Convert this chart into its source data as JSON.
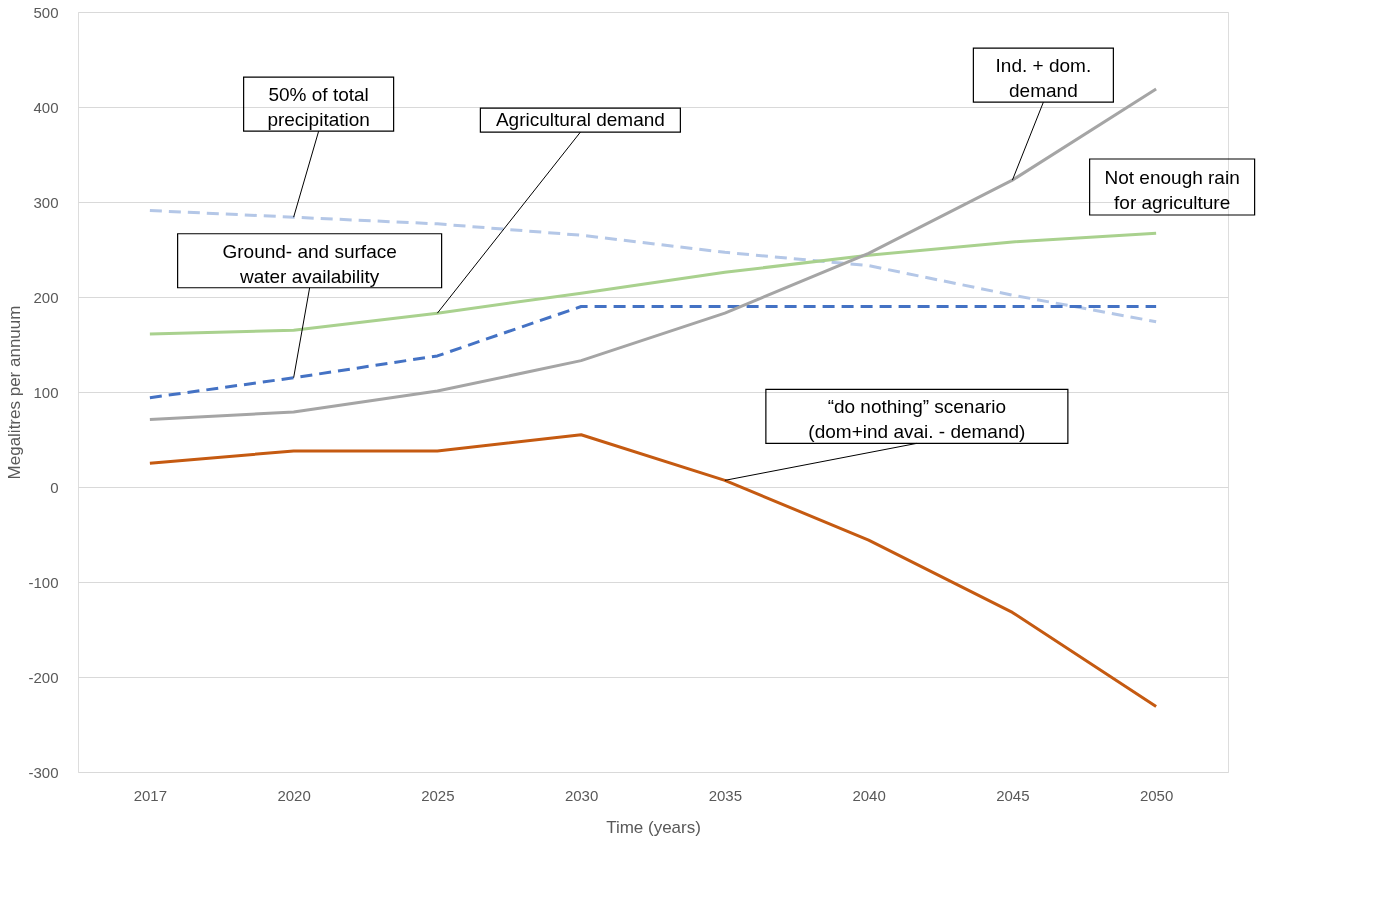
{
  "chart_data": {
    "type": "line",
    "xlabel": "Time (years)",
    "ylabel": "Megalitres per annuum",
    "categories": [
      "2017",
      "2020",
      "2025",
      "2030",
      "2035",
      "2040",
      "2045",
      "2050"
    ],
    "ylim": [
      -300,
      500
    ],
    "yticks": [
      -300,
      -200,
      -100,
      0,
      100,
      200,
      300,
      400,
      500
    ],
    "grid": "y",
    "marker": "none",
    "series": [
      {
        "color": "#b4c7e7",
        "line_style": "dashed",
        "values": [
          291,
          284,
          277,
          265,
          247,
          233,
          202,
          174
        ]
      },
      {
        "color": "#4472c4",
        "line_style": "dashed",
        "values": [
          94,
          115,
          138,
          190,
          190,
          190,
          190,
          190
        ]
      },
      {
        "color": "#a9d18e",
        "line_style": "solid",
        "values": [
          161,
          165,
          183,
          204,
          226,
          244,
          258,
          267
        ]
      },
      {
        "color": "#a5a5a5",
        "line_style": "solid",
        "values": [
          71,
          79,
          101,
          133,
          183,
          246,
          323,
          419
        ]
      },
      {
        "color": "#c55a11",
        "line_style": "solid",
        "values": [
          25,
          38,
          38,
          55,
          7,
          -56,
          -132,
          -231
        ]
      }
    ],
    "annotations": [
      {
        "text": "50% of total\nprecipitation",
        "x": "2020",
        "y": 284
      },
      {
        "text": "Agricultural demand",
        "x": "2025",
        "y": 183
      },
      {
        "text": "Ind. + dom.\ndemand",
        "x": "2045",
        "y": 323
      },
      "Not enough rain\nfor agriculture",
      {
        "text": "Ground- and surface\nwater availability",
        "x": "2020",
        "y": 115
      },
      {
        "text": "“do nothing” scenario\n(dom+ind avai. - demand)",
        "x": "2035",
        "y": 7
      }
    ]
  }
}
